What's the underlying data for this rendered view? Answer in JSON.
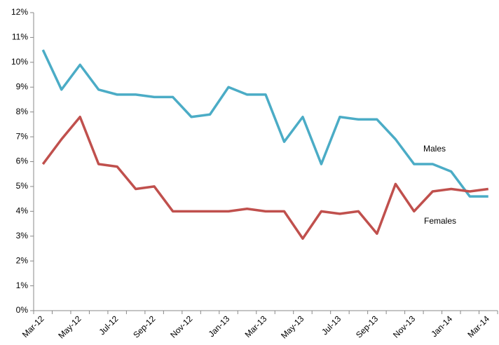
{
  "chart_data": {
    "type": "line",
    "categories": [
      "Mar-12",
      null,
      "May-12",
      null,
      "Jul-12",
      null,
      "Sep-12",
      null,
      "Nov-12",
      null,
      "Jan-13",
      null,
      "Mar-13",
      null,
      "May-13",
      null,
      "Jul-13",
      null,
      "Sep-13",
      null,
      "Nov-13",
      null,
      "Jan-14",
      null,
      "Mar-14"
    ],
    "series": [
      {
        "name": "Males",
        "color": "#4bacc6",
        "values": [
          10.5,
          8.9,
          9.9,
          8.9,
          8.7,
          8.7,
          8.6,
          8.6,
          7.8,
          7.9,
          9.0,
          8.7,
          8.7,
          6.8,
          7.8,
          5.9,
          7.8,
          7.7,
          7.7,
          6.9,
          5.9,
          5.9,
          5.6,
          4.6,
          4.6
        ]
      },
      {
        "name": "Females",
        "color": "#c0504d",
        "values": [
          5.9,
          6.9,
          7.8,
          5.9,
          5.8,
          4.9,
          5.0,
          4.0,
          4.0,
          4.0,
          4.0,
          4.1,
          4.0,
          4.0,
          2.9,
          4.0,
          3.9,
          4.0,
          3.1,
          5.1,
          4.0,
          4.8,
          4.9,
          4.8,
          4.9
        ]
      }
    ],
    "ylim": [
      0,
      12
    ],
    "yticks": [
      {
        "value": 0,
        "label": "0%"
      },
      {
        "value": 1,
        "label": "1%"
      },
      {
        "value": 2,
        "label": "2%"
      },
      {
        "value": 3,
        "label": "3%"
      },
      {
        "value": 4,
        "label": "4%"
      },
      {
        "value": 5,
        "label": "5%"
      },
      {
        "value": 6,
        "label": "6%"
      },
      {
        "value": 7,
        "label": "7%"
      },
      {
        "value": 8,
        "label": "8%"
      },
      {
        "value": 9,
        "label": "9%"
      },
      {
        "value": 10,
        "label": "10%"
      },
      {
        "value": 11,
        "label": "11%"
      },
      {
        "value": 12,
        "label": "12%"
      }
    ],
    "grid": false
  }
}
